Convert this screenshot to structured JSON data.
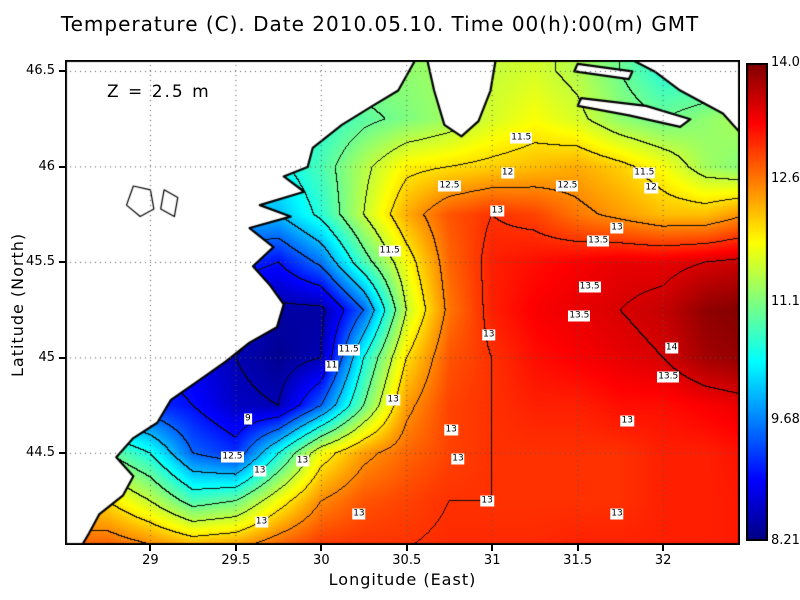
{
  "title": "Temperature (C). Date 2010.05.10. Time 00(h):00(m) GMT",
  "annotation": "Z = 2.5 m",
  "axes": {
    "x": {
      "label": "Longitude (East)",
      "range": [
        28.5,
        32.45
      ],
      "ticks": [
        {
          "v": 29,
          "label": "29"
        },
        {
          "v": 29.5,
          "label": "29.5"
        },
        {
          "v": 30,
          "label": "30"
        },
        {
          "v": 30.5,
          "label": "30.5"
        },
        {
          "v": 31,
          "label": "31"
        },
        {
          "v": 31.5,
          "label": "31.5"
        },
        {
          "v": 32,
          "label": "32"
        }
      ]
    },
    "y": {
      "label": "Latitude (North)",
      "range": [
        44.02,
        46.56
      ],
      "ticks": [
        {
          "v": 44.5,
          "label": "44.5"
        },
        {
          "v": 45,
          "label": "45"
        },
        {
          "v": 45.5,
          "label": "45.5"
        },
        {
          "v": 46,
          "label": "46"
        },
        {
          "v": 46.5,
          "label": "46.5"
        }
      ]
    }
  },
  "colorbar": {
    "min": 8.21,
    "max": 14.0,
    "labels": [
      {
        "v": 14.0,
        "label": "14.0"
      },
      {
        "v": 12.6,
        "label": "12.6"
      },
      {
        "v": 11.1,
        "label": "11.1"
      },
      {
        "v": 9.68,
        "label": "9.68"
      },
      {
        "v": 8.21,
        "label": "8.21"
      }
    ],
    "colormap": {
      "positions": [
        0,
        0.125,
        0.375,
        0.625,
        0.875,
        1
      ],
      "colors": [
        [
          0,
          0,
          131
        ],
        [
          0,
          0,
          255
        ],
        [
          0,
          255,
          255
        ],
        [
          255,
          255,
          0
        ],
        [
          255,
          0,
          0
        ],
        [
          128,
          0,
          0
        ]
      ]
    }
  },
  "chart_data": {
    "type": "heatmap",
    "units": "C",
    "contour_interval": 0.5,
    "lon": [
      28.5,
      28.75,
      29,
      29.25,
      29.5,
      29.75,
      30,
      30.25,
      30.5,
      30.75,
      31,
      31.25,
      31.5,
      31.75,
      32,
      32.25,
      32.5
    ],
    "lat": [
      46.5,
      46.25,
      46,
      45.75,
      45.5,
      45.25,
      45,
      44.75,
      44.5,
      44.25,
      44
    ],
    "values": [
      [
        11.5,
        11.5,
        11.5,
        11.5,
        11.5,
        11.4,
        11.3,
        11.2,
        11.2,
        11.3,
        11.5,
        11.6,
        11.4,
        11.0,
        10.6,
        10.6,
        10.9
      ],
      [
        11.0,
        11.0,
        11.0,
        11.0,
        10.8,
        10.6,
        10.6,
        10.9,
        11.1,
        11.3,
        11.6,
        11.8,
        11.6,
        11.2,
        11.0,
        11.2,
        11.4
      ],
      [
        10.8,
        10.8,
        10.8,
        10.6,
        10.4,
        10.4,
        10.8,
        11.4,
        11.9,
        12.0,
        12.1,
        12.2,
        12.3,
        12.1,
        11.8,
        11.3,
        11.1
      ],
      [
        10.5,
        10.5,
        10.4,
        10.2,
        10.0,
        10.0,
        10.6,
        11.5,
        12.3,
        12.8,
        13.0,
        12.9,
        12.6,
        12.4,
        12.2,
        12.2,
        12.5
      ],
      [
        10.0,
        10.0,
        9.8,
        9.5,
        9.2,
        9.0,
        9.6,
        10.8,
        11.8,
        12.7,
        13.1,
        13.2,
        13.3,
        13.4,
        13.4,
        13.5,
        13.6
      ],
      [
        9.5,
        9.5,
        9.3,
        9.0,
        8.7,
        8.4,
        8.4,
        9.5,
        11.5,
        12.6,
        13.1,
        13.3,
        13.4,
        13.5,
        13.6,
        13.9,
        14.0
      ],
      [
        9.2,
        9.2,
        9.0,
        8.8,
        8.5,
        8.3,
        8.5,
        10.5,
        12.0,
        12.8,
        13.0,
        13.2,
        13.3,
        13.4,
        13.5,
        13.8,
        13.9
      ],
      [
        9.5,
        9.5,
        9.2,
        9.0,
        8.6,
        8.5,
        9.5,
        11.0,
        12.4,
        12.9,
        13.0,
        13.1,
        13.1,
        13.2,
        13.2,
        13.3,
        13.4
      ],
      [
        11.0,
        11.0,
        10.5,
        9.5,
        9.2,
        10.5,
        11.8,
        12.4,
        12.7,
        12.9,
        13.0,
        13.0,
        13.0,
        13.0,
        13.1,
        13.1,
        13.2
      ],
      [
        12.0,
        12.0,
        11.5,
        10.8,
        11.0,
        11.8,
        12.5,
        12.8,
        12.9,
        13.0,
        13.0,
        13.0,
        13.0,
        13.0,
        13.1,
        13.1,
        13.15
      ],
      [
        12.8,
        12.8,
        12.6,
        12.4,
        12.5,
        12.8,
        13.0,
        13.0,
        13.0,
        13.05,
        13.05,
        13.05,
        13.1,
        13.1,
        13.1,
        13.1,
        13.15
      ]
    ],
    "contour_labels": [
      {
        "t": "11.5",
        "lon": 31.17,
        "lat": 46.15
      },
      {
        "t": "12",
        "lon": 31.09,
        "lat": 45.97
      },
      {
        "t": "12.5",
        "lon": 30.75,
        "lat": 45.9
      },
      {
        "t": "12.5",
        "lon": 31.44,
        "lat": 45.9
      },
      {
        "t": "11.5",
        "lon": 31.89,
        "lat": 45.97
      },
      {
        "t": "12",
        "lon": 31.93,
        "lat": 45.89
      },
      {
        "t": "13",
        "lon": 31.03,
        "lat": 45.77
      },
      {
        "t": "13",
        "lon": 31.73,
        "lat": 45.68
      },
      {
        "t": "13.5",
        "lon": 31.62,
        "lat": 45.61
      },
      {
        "t": "11.5",
        "lon": 30.4,
        "lat": 45.56
      },
      {
        "t": "13.5",
        "lon": 31.57,
        "lat": 45.37
      },
      {
        "t": "13.5",
        "lon": 31.51,
        "lat": 45.22
      },
      {
        "t": "13",
        "lon": 30.98,
        "lat": 45.12
      },
      {
        "t": "11.5",
        "lon": 30.16,
        "lat": 45.04
      },
      {
        "t": "11",
        "lon": 30.06,
        "lat": 44.96
      },
      {
        "t": "14",
        "lon": 32.05,
        "lat": 45.05
      },
      {
        "t": "13.5",
        "lon": 32.03,
        "lat": 44.9
      },
      {
        "t": "13",
        "lon": 30.42,
        "lat": 44.78
      },
      {
        "t": "9",
        "lon": 29.57,
        "lat": 44.68
      },
      {
        "t": "13",
        "lon": 31.79,
        "lat": 44.67
      },
      {
        "t": "12.5",
        "lon": 29.48,
        "lat": 44.48
      },
      {
        "t": "13",
        "lon": 29.64,
        "lat": 44.41
      },
      {
        "t": "13",
        "lon": 29.89,
        "lat": 44.46
      },
      {
        "t": "13",
        "lon": 30.76,
        "lat": 44.62
      },
      {
        "t": "13",
        "lon": 30.8,
        "lat": 44.47
      },
      {
        "t": "13",
        "lon": 30.97,
        "lat": 44.25
      },
      {
        "t": "13",
        "lon": 30.22,
        "lat": 44.18
      },
      {
        "t": "13",
        "lon": 31.73,
        "lat": 44.18
      },
      {
        "t": "13",
        "lon": 29.65,
        "lat": 44.14
      }
    ],
    "land": [
      [
        [
          28.5,
          46.56
        ],
        [
          30.55,
          46.56
        ],
        [
          30.45,
          46.4
        ],
        [
          30.3,
          46.32
        ],
        [
          30.12,
          46.22
        ],
        [
          29.95,
          46.1
        ],
        [
          29.92,
          46.0
        ],
        [
          29.78,
          45.95
        ],
        [
          29.9,
          45.87
        ],
        [
          29.64,
          45.8
        ],
        [
          29.82,
          45.74
        ],
        [
          29.58,
          45.68
        ],
        [
          29.72,
          45.58
        ],
        [
          29.6,
          45.48
        ],
        [
          29.7,
          45.38
        ],
        [
          29.78,
          45.28
        ],
        [
          29.74,
          45.16
        ],
        [
          29.58,
          45.08
        ],
        [
          29.44,
          44.98
        ],
        [
          29.28,
          44.88
        ],
        [
          29.12,
          44.78
        ],
        [
          29.04,
          44.66
        ],
        [
          28.9,
          44.58
        ],
        [
          28.8,
          44.48
        ],
        [
          28.9,
          44.38
        ],
        [
          28.84,
          44.28
        ],
        [
          28.7,
          44.18
        ],
        [
          28.64,
          44.08
        ],
        [
          28.6,
          44.02
        ],
        [
          28.5,
          44.02
        ]
      ],
      [
        [
          30.62,
          46.56
        ],
        [
          30.66,
          46.4
        ],
        [
          30.72,
          46.22
        ],
        [
          30.82,
          46.16
        ],
        [
          30.92,
          46.24
        ],
        [
          30.99,
          46.4
        ],
        [
          31.02,
          46.56
        ]
      ],
      [
        [
          31.82,
          46.56
        ],
        [
          32.45,
          46.56
        ],
        [
          32.45,
          46.18
        ],
        [
          32.35,
          46.28
        ],
        [
          32.1,
          46.4
        ],
        [
          31.95,
          46.5
        ]
      ],
      [
        [
          31.5,
          46.54
        ],
        [
          31.82,
          46.5
        ],
        [
          31.8,
          46.46
        ],
        [
          31.48,
          46.5
        ]
      ],
      [
        [
          31.52,
          46.36
        ],
        [
          31.9,
          46.32
        ],
        [
          32.16,
          46.25
        ],
        [
          32.1,
          46.21
        ],
        [
          31.8,
          46.27
        ],
        [
          31.5,
          46.32
        ]
      ]
    ],
    "lagoons": [
      [
        [
          28.9,
          45.9
        ],
        [
          29.0,
          45.88
        ],
        [
          29.02,
          45.78
        ],
        [
          28.94,
          45.74
        ],
        [
          28.86,
          45.8
        ]
      ],
      [
        [
          29.08,
          45.88
        ],
        [
          29.16,
          45.84
        ],
        [
          29.14,
          45.74
        ],
        [
          29.06,
          45.78
        ]
      ]
    ]
  }
}
